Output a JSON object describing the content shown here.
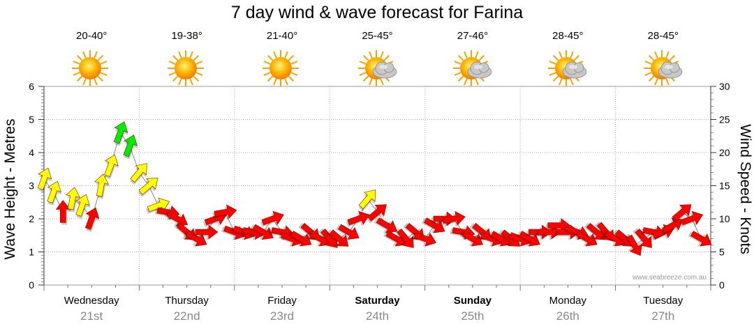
{
  "title": "7 day wind & wave forecast for Farina",
  "watermark": "www.seabreeze.com.au",
  "colors": {
    "calm": "#ff0000",
    "moderate": "#ffff00",
    "strong": "#00ee00",
    "grid": "#aaaaaa"
  },
  "days": [
    {
      "name": "Wednesday",
      "date": "21st",
      "bold": false,
      "temp": "20-40°",
      "icon": "sun-icon"
    },
    {
      "name": "Thursday",
      "date": "22nd",
      "bold": false,
      "temp": "19-38°",
      "icon": "sun-icon"
    },
    {
      "name": "Friday",
      "date": "23rd",
      "bold": false,
      "temp": "21-40°",
      "icon": "sun-icon"
    },
    {
      "name": "Saturday",
      "date": "24th",
      "bold": true,
      "temp": "25-45°",
      "icon": "sun-cloud-icon"
    },
    {
      "name": "Sunday",
      "date": "25th",
      "bold": true,
      "temp": "27-46°",
      "icon": "sun-cloud-icon"
    },
    {
      "name": "Monday",
      "date": "26th",
      "bold": false,
      "temp": "28-45°",
      "icon": "sun-cloud-icon"
    },
    {
      "name": "Tuesday",
      "date": "27th",
      "bold": false,
      "temp": "28-45°",
      "icon": "sun-cloud-icon"
    }
  ],
  "chart_data": {
    "type": "line",
    "ylabel": "Wave Height - Metres",
    "y2label": "Wind Speed - Knots",
    "ylim": [
      0,
      6
    ],
    "y2lim": [
      0,
      30
    ],
    "yticks": [
      0,
      1,
      2,
      3,
      4,
      5,
      6
    ],
    "y2ticks": [
      0,
      5,
      10,
      15,
      20,
      25,
      30
    ],
    "xlim": [
      0,
      7
    ],
    "grid": true,
    "series": [
      {
        "x": [
          0.0,
          0.1,
          0.2,
          0.3,
          0.4,
          0.5,
          0.6,
          0.7,
          0.8,
          0.9,
          1.0,
          1.1,
          1.2,
          1.3,
          1.4,
          1.5,
          1.6,
          1.7,
          1.8,
          1.9,
          2.0,
          2.1,
          2.2,
          2.3,
          2.4,
          2.5,
          2.6,
          2.7,
          2.8,
          2.9,
          3.0,
          3.1,
          3.2,
          3.3,
          3.4,
          3.5,
          3.6,
          3.7,
          3.8,
          3.9,
          4.0,
          4.1,
          4.2,
          4.3,
          4.4,
          4.5,
          4.6,
          4.7,
          4.8,
          4.9,
          5.0,
          5.1,
          5.2,
          5.3,
          5.4,
          5.5,
          5.6,
          5.7,
          5.8,
          5.9,
          6.0,
          6.1,
          6.2,
          6.3,
          6.4,
          6.5,
          6.6,
          6.7,
          6.8,
          6.9
        ],
        "values": [
          16,
          14,
          11,
          13,
          12,
          10,
          15,
          18,
          23,
          21,
          17,
          15,
          12,
          11,
          10,
          8,
          7,
          8,
          10,
          11,
          8,
          8,
          8,
          8,
          10,
          8,
          7,
          7,
          8,
          7,
          7,
          7,
          8,
          10,
          13,
          11,
          9,
          7,
          7,
          8,
          7,
          9,
          10,
          10,
          8,
          7,
          8,
          7,
          7,
          7,
          7,
          7,
          8,
          8,
          9,
          8,
          8,
          7,
          8,
          8,
          7,
          7,
          6,
          7,
          8,
          8,
          9,
          11,
          10,
          7
        ]
      }
    ],
    "wind_direction_deg": [
      200,
      200,
      180,
      190,
      200,
      200,
      190,
      200,
      200,
      200,
      220,
      230,
      250,
      280,
      300,
      310,
      300,
      270,
      250,
      260,
      290,
      290,
      280,
      300,
      250,
      280,
      290,
      300,
      310,
      300,
      320,
      310,
      300,
      250,
      220,
      230,
      300,
      300,
      320,
      310,
      290,
      300,
      270,
      260,
      280,
      300,
      310,
      290,
      300,
      310,
      290,
      300,
      270,
      270,
      270,
      270,
      290,
      300,
      310,
      320,
      300,
      310,
      330,
      320,
      280,
      250,
      240,
      230,
      250,
      300
    ]
  }
}
